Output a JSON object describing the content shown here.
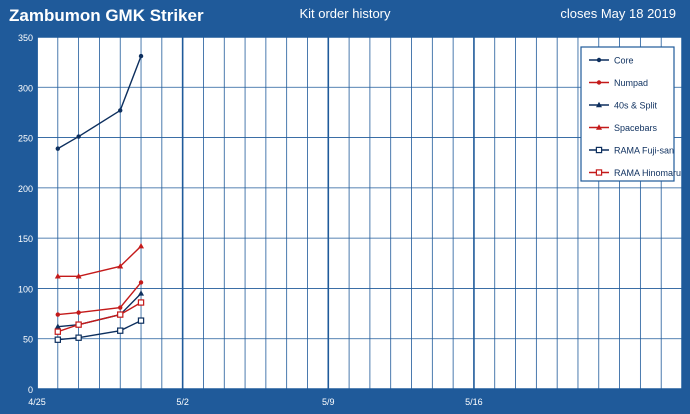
{
  "header": {
    "title": "Zambumon GMK Striker",
    "subtitle": "Kit order history",
    "closes": "closes  May 18  2019"
  },
  "colors": {
    "background": "#1f5a9a",
    "plot": "#ffffff",
    "grid": "#1f5a9a",
    "navy": "#0d2f5e",
    "red": "#c41a1a"
  },
  "chart_data": {
    "type": "line",
    "title": "Kit order history",
    "xlabel": "",
    "ylabel": "",
    "x_ticks": [
      "4/25",
      "5/2",
      "5/9",
      "5/16"
    ],
    "xlim": [
      "4/25",
      "5/26"
    ],
    "ylim": [
      0,
      350
    ],
    "y_ticks": [
      0,
      50,
      100,
      150,
      200,
      250,
      300,
      350
    ],
    "grid": true,
    "legend_position": "top-right",
    "series": [
      {
        "name": "Core",
        "color": "#0d2f5e",
        "marker": "dot",
        "points": [
          [
            "4/26",
            239
          ],
          [
            "4/27",
            251
          ],
          [
            "4/29",
            277
          ],
          [
            "4/30",
            331
          ]
        ]
      },
      {
        "name": "Numpad",
        "color": "#c41a1a",
        "marker": "dot",
        "points": [
          [
            "4/26",
            74
          ],
          [
            "4/27",
            76
          ],
          [
            "4/29",
            81
          ],
          [
            "4/30",
            106
          ]
        ]
      },
      {
        "name": "40s & Split",
        "color": "#0d2f5e",
        "marker": "triangle",
        "points": [
          [
            "4/26",
            62
          ],
          [
            "4/27",
            64
          ],
          [
            "4/29",
            74
          ],
          [
            "4/30",
            95
          ]
        ]
      },
      {
        "name": "Spacebars",
        "color": "#c41a1a",
        "marker": "triangle",
        "points": [
          [
            "4/26",
            112
          ],
          [
            "4/27",
            112
          ],
          [
            "4/29",
            122
          ],
          [
            "4/30",
            142
          ]
        ]
      },
      {
        "name": "RAMA Fuji-san",
        "color": "#0d2f5e",
        "marker": "square",
        "points": [
          [
            "4/26",
            49
          ],
          [
            "4/27",
            51
          ],
          [
            "4/29",
            58
          ],
          [
            "4/30",
            68
          ]
        ]
      },
      {
        "name": "RAMA Hinomaru",
        "color": "#c41a1a",
        "marker": "square",
        "points": [
          [
            "4/26",
            57
          ],
          [
            "4/27",
            64
          ],
          [
            "4/29",
            74
          ],
          [
            "4/30",
            86
          ]
        ]
      }
    ]
  }
}
